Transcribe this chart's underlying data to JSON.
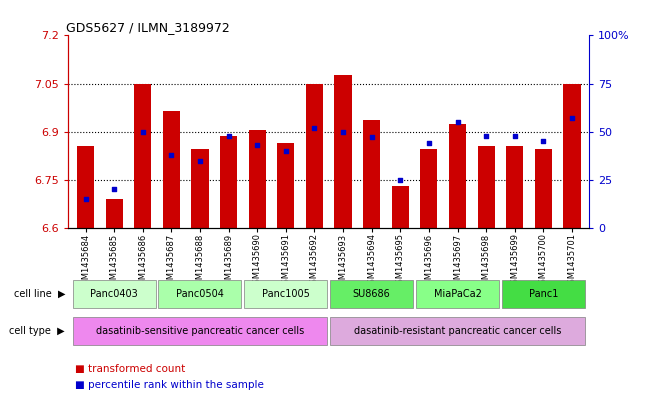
{
  "title": "GDS5627 / ILMN_3189972",
  "samples": [
    "GSM1435684",
    "GSM1435685",
    "GSM1435686",
    "GSM1435687",
    "GSM1435688",
    "GSM1435689",
    "GSM1435690",
    "GSM1435691",
    "GSM1435692",
    "GSM1435693",
    "GSM1435694",
    "GSM1435695",
    "GSM1435696",
    "GSM1435697",
    "GSM1435698",
    "GSM1435699",
    "GSM1435700",
    "GSM1435701"
  ],
  "red_values": [
    6.855,
    6.69,
    7.05,
    6.965,
    6.845,
    6.885,
    6.905,
    6.865,
    7.05,
    7.075,
    6.935,
    6.73,
    6.845,
    6.925,
    6.855,
    6.855,
    6.845,
    7.05
  ],
  "blue_percentiles": [
    15,
    20,
    50,
    38,
    35,
    48,
    43,
    40,
    52,
    50,
    47,
    25,
    44,
    55,
    48,
    48,
    45,
    57
  ],
  "ylim_left": [
    6.6,
    7.2
  ],
  "ylim_right": [
    0,
    100
  ],
  "yticks_left": [
    6.6,
    6.75,
    6.9,
    7.05,
    7.2
  ],
  "yticks_right": [
    0,
    25,
    50,
    75,
    100
  ],
  "ytick_labels_left": [
    "6.6",
    "6.75",
    "6.9",
    "7.05",
    "7.2"
  ],
  "ytick_labels_right": [
    "0",
    "25",
    "50",
    "75",
    "100%"
  ],
  "cell_line_groups": [
    {
      "label": "Panc0403",
      "start": 0,
      "end": 2,
      "color": "#ccffcc"
    },
    {
      "label": "Panc0504",
      "start": 3,
      "end": 5,
      "color": "#aaffaa"
    },
    {
      "label": "Panc1005",
      "start": 6,
      "end": 8,
      "color": "#ccffcc"
    },
    {
      "label": "SU8686",
      "start": 9,
      "end": 11,
      "color": "#66ee66"
    },
    {
      "label": "MiaPaCa2",
      "start": 12,
      "end": 14,
      "color": "#88ff88"
    },
    {
      "label": "Panc1",
      "start": 15,
      "end": 17,
      "color": "#44dd44"
    }
  ],
  "cell_type_groups": [
    {
      "label": "dasatinib-sensitive pancreatic cancer cells",
      "start": 0,
      "end": 8,
      "color": "#ee88ee"
    },
    {
      "label": "dasatinib-resistant pancreatic cancer cells",
      "start": 9,
      "end": 17,
      "color": "#ddaadd"
    }
  ],
  "bar_color": "#cc0000",
  "dot_color": "#0000cc",
  "bar_width": 0.6,
  "left_axis_color": "#cc0000",
  "right_axis_color": "#0000cc"
}
